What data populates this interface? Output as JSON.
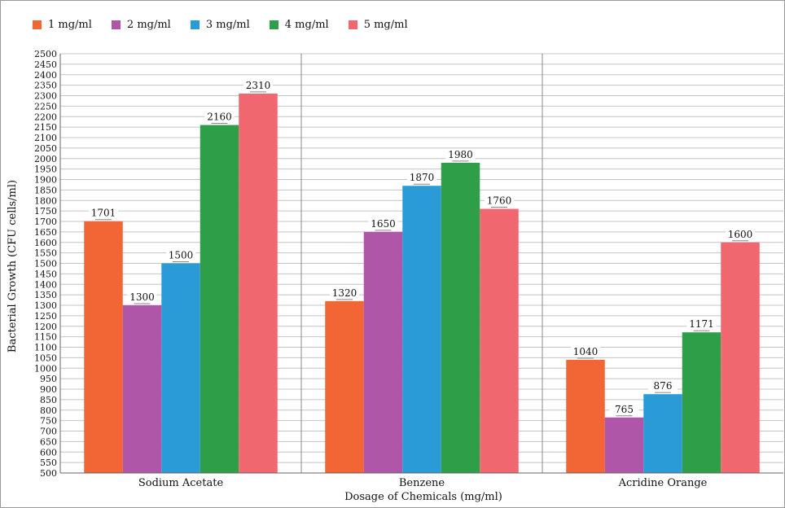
{
  "chart_data": {
    "type": "bar",
    "title": "",
    "xlabel": "Dosage of Chemicals (mg/ml)",
    "ylabel": "Bacterial Growth (CFU cells/ml)",
    "ylim": [
      500,
      2500
    ],
    "ytick_step": 50,
    "grid": true,
    "legend_position": "top-left",
    "categories": [
      "Sodium Acetate",
      "Benzene",
      "Acridine Orange"
    ],
    "series": [
      {
        "name": "1 mg/ml",
        "color": "#f26535",
        "values": [
          1701,
          1320,
          1040
        ]
      },
      {
        "name": "2 mg/ml",
        "color": "#b056a8",
        "values": [
          1300,
          1650,
          765
        ]
      },
      {
        "name": "3 mg/ml",
        "color": "#2a9bd6",
        "values": [
          1500,
          1870,
          876
        ]
      },
      {
        "name": "4 mg/ml",
        "color": "#2f9e48",
        "values": [
          2160,
          1980,
          1171
        ]
      },
      {
        "name": "5 mg/ml",
        "color": "#f06770",
        "values": [
          2310,
          1760,
          1600
        ]
      }
    ]
  }
}
